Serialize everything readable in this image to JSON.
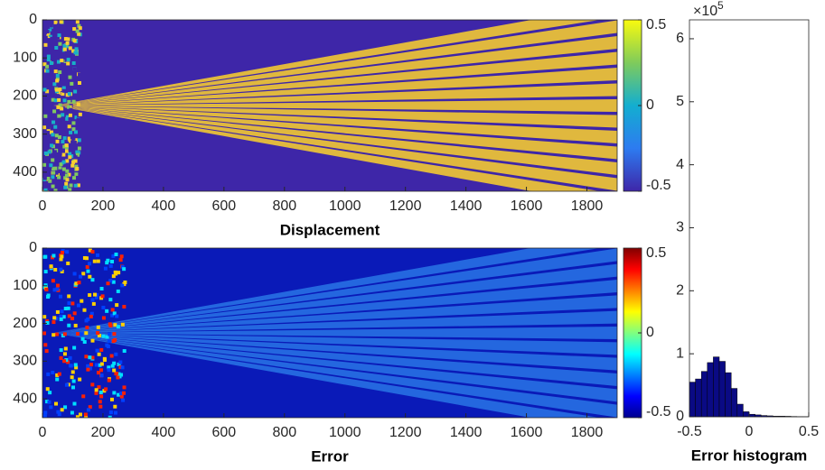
{
  "chart_data": [
    {
      "type": "heatmap",
      "xlabel": "Displacement",
      "colormap": "parula",
      "xlim": [
        0,
        1900
      ],
      "xticks": [
        0,
        200,
        400,
        600,
        800,
        1000,
        1200,
        1400,
        1600,
        1800
      ],
      "ylim": [
        0,
        450
      ],
      "yticks": [
        0,
        100,
        200,
        300,
        400
      ],
      "y_reversed": true,
      "clim": [
        -0.5,
        0.5
      ],
      "cticks": [
        -0.5,
        0,
        0.5
      ]
    },
    {
      "type": "heatmap",
      "xlabel": "Error",
      "colormap": "jet",
      "xlim": [
        0,
        1900
      ],
      "xticks": [
        0,
        200,
        400,
        600,
        800,
        1000,
        1200,
        1400,
        1600,
        1800
      ],
      "ylim": [
        0,
        450
      ],
      "yticks": [
        0,
        100,
        200,
        300,
        400
      ],
      "y_reversed": true,
      "clim": [
        -0.5,
        0.5
      ],
      "cticks": [
        -0.5,
        0,
        0.5
      ]
    },
    {
      "type": "histogram",
      "xlabel": "Error histogram",
      "color": "#0a0a84",
      "bins": [
        -0.5,
        -0.45,
        -0.4,
        -0.35,
        -0.3,
        -0.25,
        -0.2,
        -0.15,
        -0.1,
        -0.05,
        0,
        0.05,
        0.1,
        0.15,
        0.2,
        0.25,
        0.3,
        0.35,
        0.4,
        0.45,
        0.5
      ],
      "values": [
        0.55,
        0.6,
        0.72,
        0.86,
        0.95,
        0.88,
        0.7,
        0.45,
        0.2,
        0.08,
        0.04,
        0.03,
        0.02,
        0.015,
        0.01,
        0.01,
        0.008,
        0.005,
        0.003,
        0.002
      ],
      "xlim": [
        -0.5,
        0.5
      ],
      "xticks": [
        -0.5,
        0,
        0.5
      ],
      "ylim": [
        0,
        6.3
      ],
      "yticks": [
        0,
        1,
        2,
        3,
        4,
        5,
        6
      ],
      "y_multiplier": "×10",
      "y_multiplier_exponent": 5
    }
  ]
}
